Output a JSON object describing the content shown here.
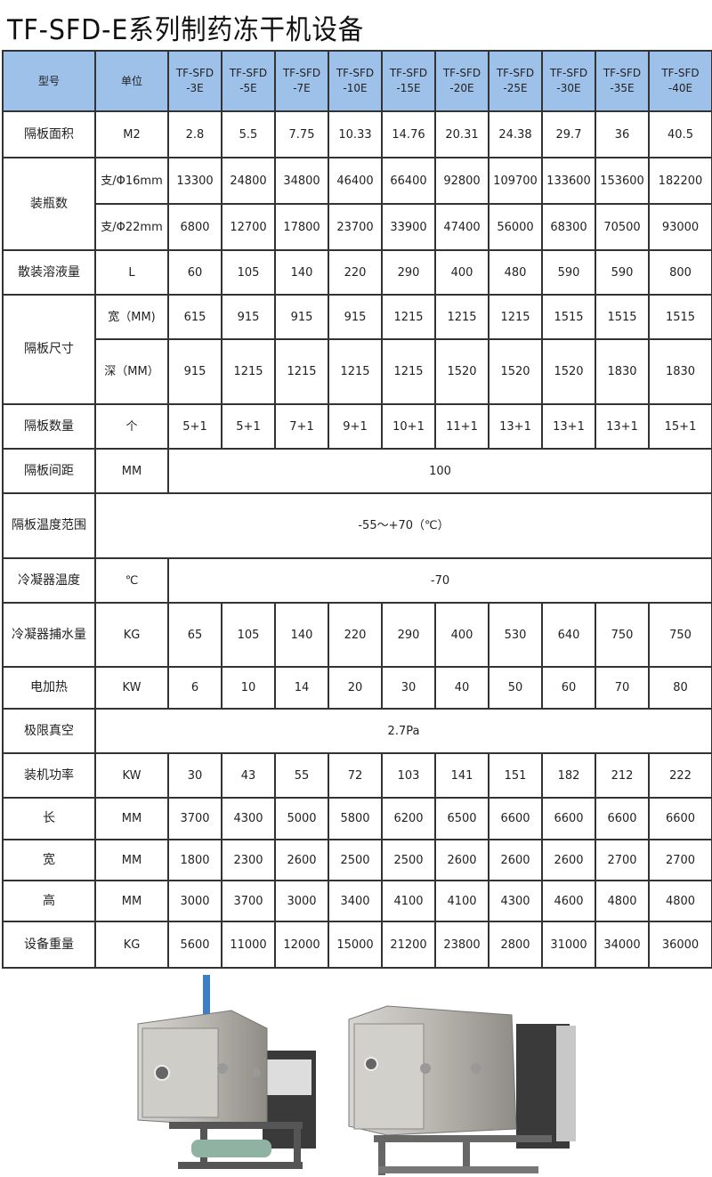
{
  "title": "TF-SFD-E系列制药冻干机设备",
  "header": {
    "model_label": "型号",
    "unit_label": "单位",
    "models": [
      [
        "TF-SFD",
        "-3E"
      ],
      [
        "TF-SFD",
        "-5E"
      ],
      [
        "TF-SFD",
        "-7E"
      ],
      [
        "TF-SFD",
        "-10E"
      ],
      [
        "TF-SFD",
        "-15E"
      ],
      [
        "TF-SFD",
        "-20E"
      ],
      [
        "TF-SFD",
        "-25E"
      ],
      [
        "TF-SFD",
        "-30E"
      ],
      [
        "TF-SFD",
        "-35E"
      ],
      [
        "TF-SFD",
        "-40E"
      ]
    ]
  },
  "colors": {
    "header_bg": "#9ec1ea",
    "border": "#333333"
  },
  "rows": [
    {
      "label": "隔板面积",
      "unit": "M2",
      "values": [
        "2.8",
        "5.5",
        "7.75",
        "10.33",
        "14.76",
        "20.31",
        "24.38",
        "29.7",
        "36",
        "40.5"
      ]
    },
    {
      "label": "装瓶数",
      "sub": [
        {
          "unit": "支/Φ16mm",
          "values": [
            "13300",
            "24800",
            "34800",
            "46400",
            "66400",
            "92800",
            "109700",
            "133600",
            "153600",
            "182200"
          ]
        },
        {
          "unit": "支/Φ22mm",
          "values": [
            "6800",
            "12700",
            "17800",
            "23700",
            "33900",
            "47400",
            "56000",
            "68300",
            "70500",
            "93000"
          ]
        }
      ]
    },
    {
      "label": "散装溶液量",
      "unit": "L",
      "values": [
        "60",
        "105",
        "140",
        "220",
        "290",
        "400",
        "480",
        "590",
        "590",
        "800"
      ]
    },
    {
      "label": "隔板尺寸",
      "sub": [
        {
          "unit": "宽（MM)",
          "values": [
            "615",
            "915",
            "915",
            "915",
            "1215",
            "1215",
            "1215",
            "1515",
            "1515",
            "1515"
          ]
        },
        {
          "unit": "深（MM）",
          "values": [
            "915",
            "1215",
            "1215",
            "1215",
            "1215",
            "1520",
            "1520",
            "1520",
            "1830",
            "1830"
          ]
        }
      ]
    },
    {
      "label": "隔板数量",
      "unit": "个",
      "values": [
        "5+1",
        "5+1",
        "7+1",
        "9+1",
        "10+1",
        "11+1",
        "13+1",
        "13+1",
        "13+1",
        "15+1"
      ]
    },
    {
      "label": "隔板间距",
      "unit": "MM",
      "value": "100"
    },
    {
      "label": "隔板温度范围",
      "value": "-55～+70（℃）"
    },
    {
      "label": "冷凝器温度",
      "unit": "℃",
      "value": "-70"
    },
    {
      "label": "冷凝器捕水量",
      "unit": "KG",
      "values": [
        "65",
        "105",
        "140",
        "220",
        "290",
        "400",
        "530",
        "640",
        "750",
        "750"
      ]
    },
    {
      "label": "电加热",
      "unit": "KW",
      "values": [
        "6",
        "10",
        "14",
        "20",
        "30",
        "40",
        "50",
        "60",
        "70",
        "80"
      ]
    },
    {
      "label": "极限真空",
      "value": "2.7Pa"
    },
    {
      "label": "装机功率",
      "unit": "KW",
      "values": [
        "30",
        "43",
        "55",
        "72",
        "103",
        "141",
        "151",
        "182",
        "212",
        "222"
      ]
    },
    {
      "label": "长",
      "unit": "MM",
      "values": [
        "3700",
        "4300",
        "5000",
        "5800",
        "6200",
        "6500",
        "6600",
        "6600",
        "6600",
        "6600"
      ]
    },
    {
      "label": "宽",
      "unit": "MM",
      "values": [
        "1800",
        "2300",
        "2600",
        "2500",
        "2500",
        "2600",
        "2600",
        "2600",
        "2700",
        "2700"
      ]
    },
    {
      "label": "高",
      "unit": "MM",
      "values": [
        "3000",
        "3700",
        "3000",
        "3400",
        "4100",
        "4100",
        "4300",
        "4600",
        "4800",
        "4800"
      ]
    },
    {
      "label": "设备重量",
      "unit": "KG",
      "values": [
        "5600",
        "11000",
        "12000",
        "15000",
        "21200",
        "23800",
        "2800",
        "31000",
        "34000",
        "36000"
      ]
    }
  ]
}
